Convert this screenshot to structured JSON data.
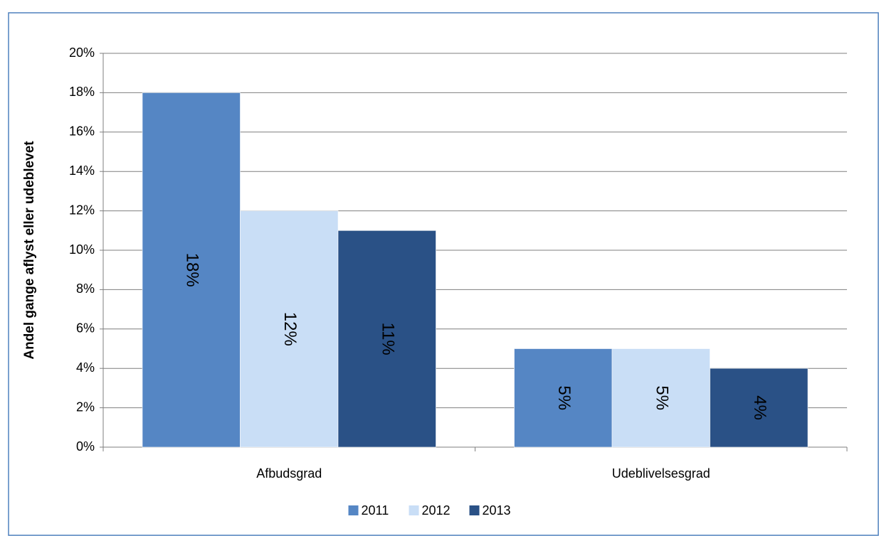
{
  "chart_data": {
    "type": "bar",
    "y_label": "Andel gange aflyst eller udeblevet",
    "categories": [
      "Afbudsgrad",
      "Udeblivelsesgrad"
    ],
    "series": [
      {
        "name": "2011",
        "color": "#5586c4",
        "values": [
          18,
          5
        ],
        "value_labels": [
          "18%",
          "5%"
        ]
      },
      {
        "name": "2012",
        "color": "#c9def6",
        "values": [
          12,
          5
        ],
        "value_labels": [
          "12%",
          "5%"
        ]
      },
      {
        "name": "2013",
        "color": "#2a5186",
        "values": [
          11,
          4
        ],
        "value_labels": [
          "11%",
          "4%"
        ]
      }
    ],
    "ylim": [
      0,
      20
    ],
    "yticks": [
      {
        "value": 0,
        "label": "0%"
      },
      {
        "value": 2,
        "label": "2%"
      },
      {
        "value": 4,
        "label": "4%"
      },
      {
        "value": 6,
        "label": "6%"
      },
      {
        "value": 8,
        "label": "8%"
      },
      {
        "value": 10,
        "label": "10%"
      },
      {
        "value": 12,
        "label": "12%"
      },
      {
        "value": 14,
        "label": "14%"
      },
      {
        "value": 16,
        "label": "16%"
      },
      {
        "value": 18,
        "label": "18%"
      },
      {
        "value": 20,
        "label": "20%"
      }
    ],
    "grid": true,
    "legend": "bottom"
  }
}
